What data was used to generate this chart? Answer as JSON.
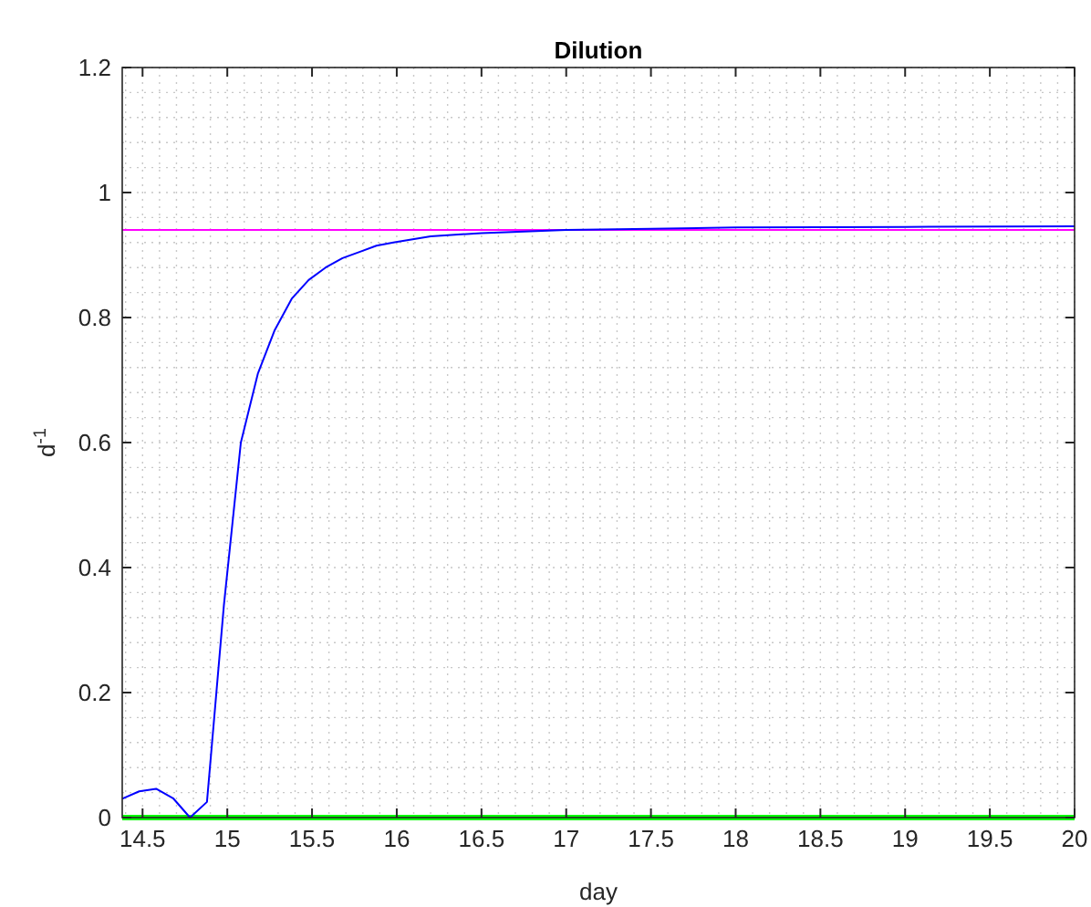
{
  "chart_data": {
    "type": "line",
    "title": "Dilution",
    "xlabel": "day",
    "ylabel": "d$^{-1}$",
    "xlim": [
      14.38,
      20
    ],
    "xticks": [
      {
        "value": 14.5,
        "label": "14.5"
      },
      15,
      {
        "value": 15.5,
        "label": "15.5"
      },
      16,
      {
        "value": 16.5,
        "label": "16.5"
      },
      17,
      {
        "value": 17.5,
        "label": "17.5"
      },
      18,
      {
        "value": 18.5,
        "label": "18.5"
      },
      19,
      {
        "value": 19.5,
        "label": "19.5"
      },
      20
    ],
    "ylim": [
      0,
      1.2
    ],
    "yticks": [
      0,
      {
        "value": 0.2,
        "label": "0.2"
      },
      {
        "value": 0.4,
        "label": "0.4"
      },
      {
        "value": 0.6,
        "label": "0.6"
      },
      {
        "value": 0.8,
        "label": "0.8"
      },
      1,
      {
        "value": 1.2,
        "label": "1.2"
      }
    ],
    "grid": true,
    "line_style": "solid",
    "marker": "none",
    "series": [
      {
        "color": "#00ff00",
        "x": [
          14.38,
          20
        ],
        "values": [
          0,
          0
        ]
      },
      {
        "color": "#ff00ff",
        "x": [
          14.38,
          20
        ],
        "values": [
          0.94,
          0.94
        ]
      },
      {
        "color": "#0000ff",
        "x": [
          14.38,
          14.48,
          14.58,
          14.68,
          14.78,
          14.88,
          14.98,
          15.08,
          15.18,
          15.28,
          15.38,
          15.48,
          15.58,
          15.68,
          15.78,
          15.88,
          15.98,
          16.2,
          16.5,
          17,
          17.5,
          18,
          19,
          20
        ],
        "values": [
          0.03,
          0.042,
          0.046,
          0.031,
          0,
          0.025,
          0.34,
          0.6,
          0.71,
          0.78,
          0.83,
          0.86,
          0.88,
          0.895,
          0.905,
          0.915,
          0.92,
          0.93,
          0.935,
          0.94,
          0.942,
          0.944,
          0.945,
          0.946
        ]
      }
    ]
  }
}
